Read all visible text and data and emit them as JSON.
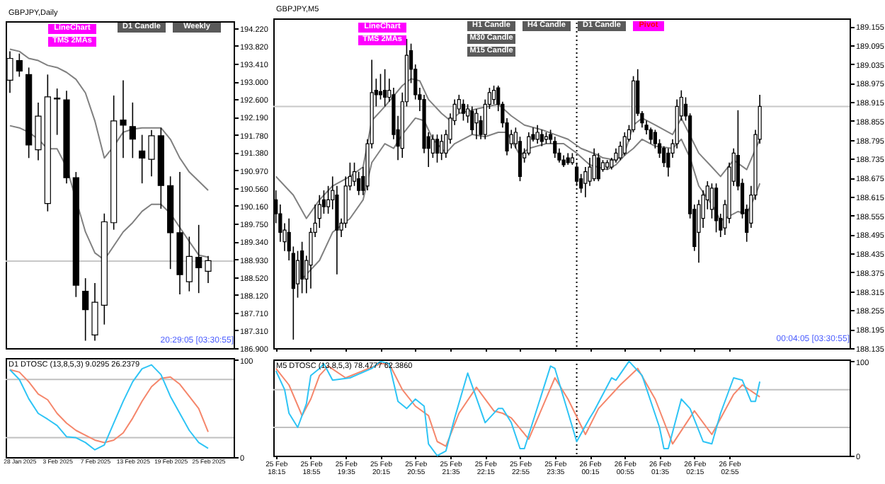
{
  "chart_data": [
    {
      "type": "candlestick",
      "title": "GBPJPY,Daily",
      "categories": [
        null,
        null,
        null,
        null,
        null,
        null,
        null,
        null,
        null,
        null,
        null,
        null,
        null,
        null,
        null,
        null,
        null,
        null,
        null,
        null,
        null,
        null
      ],
      "ohlc": [
        [
          193.03,
          193.69,
          192.74,
          193.53
        ],
        [
          193.48,
          193.64,
          193.11,
          193.24
        ],
        [
          193.16,
          193.32,
          191.25,
          191.55
        ],
        [
          191.44,
          192.52,
          191.2,
          192.21
        ],
        [
          190.21,
          193.16,
          190.03,
          192.65
        ],
        [
          192.62,
          192.84,
          191.78,
          192.6
        ],
        [
          192.58,
          192.79,
          190.67,
          190.8
        ],
        [
          190.8,
          190.93,
          188.07,
          188.34
        ],
        [
          188.2,
          188.5,
          187.07,
          187.78
        ],
        [
          187.2,
          188.39,
          187.07,
          187.95
        ],
        [
          187.88,
          189.98,
          187.44,
          189.79
        ],
        [
          189.77,
          192.68,
          189.61,
          192.1
        ],
        [
          192.12,
          193.03,
          191.25,
          192.0
        ],
        [
          191.97,
          192.52,
          191.25,
          191.68
        ],
        [
          191.41,
          191.78,
          190.67,
          191.25
        ],
        [
          191.22,
          191.89,
          190.83,
          191.76
        ],
        [
          191.76,
          191.94,
          190.09,
          190.62
        ],
        [
          190.62,
          190.83,
          188.71,
          189.54
        ],
        [
          189.54,
          190.93,
          188.13,
          188.58
        ],
        [
          188.42,
          189.45,
          188.2,
          189.0
        ],
        [
          188.98,
          189.72,
          188.16,
          188.74
        ],
        [
          188.66,
          189.01,
          188.39,
          188.9
        ]
      ],
      "series": [
        {
          "type": "line",
          "color": "#808080",
          "values": [
            193.74,
            193.69,
            193.53,
            193.48,
            193.37,
            193.32,
            193.21,
            193.05,
            192.74,
            192.1,
            191.25,
            191.52,
            191.84,
            191.91,
            191.94,
            191.94,
            191.94,
            191.68,
            191.25,
            190.93,
            190.72,
            190.51
          ]
        },
        {
          "type": "line",
          "color": "#808080",
          "values": [
            191.99,
            191.94,
            191.84,
            191.68,
            191.46,
            191.46,
            191.04,
            190.3,
            189.56,
            189.08,
            188.92,
            189.24,
            189.56,
            189.77,
            190.03,
            190.19,
            190.19,
            189.98,
            189.66,
            189.34,
            189.03,
            188.98
          ]
        }
      ],
      "ylim": [
        186.9,
        194.38
      ],
      "yticks": [
        {
          "value": 186.9,
          "label": "186.900"
        },
        {
          "value": 187.31,
          "label": "187.310"
        },
        {
          "value": 187.71,
          "label": "187.710"
        },
        {
          "value": 188.12,
          "label": "188.120"
        },
        {
          "value": 188.52,
          "label": "188.520"
        },
        {
          "value": 188.93,
          "label": "188.930"
        },
        {
          "value": 189.34,
          "label": "189.340"
        },
        {
          "value": 189.75,
          "label": "189.750"
        },
        {
          "value": 190.16,
          "label": "190.160"
        },
        {
          "value": 190.56,
          "label": "190.560"
        },
        {
          "value": 190.97,
          "label": "190.970"
        },
        {
          "value": 191.38,
          "label": "191.380"
        },
        {
          "value": 191.78,
          "label": "191.780"
        },
        {
          "value": 192.19,
          "label": "192.190"
        },
        {
          "value": 192.6,
          "label": "192.600"
        },
        {
          "value": 193.0,
          "label": "193.000"
        },
        {
          "value": 193.41,
          "label": "193.410"
        },
        {
          "value": 193.82,
          "label": "193.820"
        },
        {
          "value": 194.22,
          "label": "194.220"
        }
      ],
      "tick_labels": "y",
      "ref_lines": [
        {
          "axis": "y",
          "value": 188.89,
          "color": "#c8c8c8"
        }
      ],
      "annotations": [
        "LineChart",
        "TMS 2MAs",
        "D1 Candle",
        "Weekly",
        "20:29:05 [03:30:55]"
      ]
    },
    {
      "type": "line",
      "title": "D1 DTOSC (13,8,5,3) 9.0295 26.2379",
      "categories": [
        null,
        "28 Jan 2025",
        null,
        null,
        null,
        "3 Feb 2025",
        null,
        null,
        null,
        "7 Feb 2025",
        null,
        null,
        null,
        "13 Feb 2025",
        null,
        null,
        null,
        "19 Feb 2025",
        null,
        null,
        null,
        "25 Feb 2025"
      ],
      "series": [
        {
          "color": "#f5866b",
          "values": [
            90,
            87.5,
            77.5,
            65,
            59,
            45,
            35,
            27.5,
            22.5,
            17.5,
            15,
            17.5,
            25,
            40,
            57.5,
            72.5,
            81,
            82.5,
            75,
            62.5,
            50,
            26
          ]
        },
        {
          "color": "#2ec4f5",
          "values": [
            90,
            80,
            60,
            45,
            39,
            32.5,
            21,
            20,
            15,
            7.5,
            12.5,
            35,
            57.5,
            77.5,
            91,
            95,
            85,
            62.5,
            45,
            27.5,
            15,
            9
          ]
        }
      ],
      "ylim": [
        0,
        102
      ],
      "yticks": [
        0,
        100
      ],
      "ref_lines": [
        {
          "axis": "y",
          "value": 80,
          "color": "#c0c0c0"
        },
        {
          "axis": "y",
          "value": 20,
          "color": "#c0c0c0"
        }
      ]
    },
    {
      "type": "candlestick",
      "title": "GBPJPY,M5",
      "x": [
        "2025-02-25T18:15",
        "2025-02-25T18:20",
        "2025-02-25T18:25",
        "2025-02-25T18:30",
        "2025-02-25T18:35",
        "2025-02-25T18:40",
        "2025-02-25T18:45",
        "2025-02-25T18:50",
        "2025-02-25T18:55",
        "2025-02-25T19:00",
        "2025-02-25T19:05",
        "2025-02-25T19:10",
        "2025-02-25T19:15",
        "2025-02-25T19:20",
        "2025-02-25T19:25",
        "2025-02-25T19:30",
        "2025-02-25T19:35",
        "2025-02-25T19:40",
        "2025-02-25T19:45",
        "2025-02-25T19:50",
        "2025-02-25T19:55",
        "2025-02-25T20:00",
        "2025-02-25T20:05",
        "2025-02-25T20:10",
        "2025-02-25T20:15",
        "2025-02-25T20:20",
        "2025-02-25T20:25",
        "2025-02-25T20:30",
        "2025-02-25T20:35",
        "2025-02-25T20:40",
        "2025-02-25T20:45",
        "2025-02-25T20:50",
        "2025-02-25T20:55",
        "2025-02-25T21:00",
        "2025-02-25T21:05",
        "2025-02-25T21:10",
        "2025-02-25T21:15",
        "2025-02-25T21:20",
        "2025-02-25T21:25",
        "2025-02-25T21:30",
        "2025-02-25T21:35",
        "2025-02-25T21:40",
        "2025-02-25T21:45",
        "2025-02-25T21:50",
        "2025-02-25T21:55",
        "2025-02-25T22:00",
        "2025-02-25T22:05",
        "2025-02-25T22:10",
        "2025-02-25T22:15",
        "2025-02-25T22:20",
        "2025-02-25T22:25",
        "2025-02-25T22:30",
        "2025-02-25T22:35",
        "2025-02-25T22:40",
        "2025-02-25T22:45",
        "2025-02-25T22:50",
        "2025-02-25T22:55",
        "2025-02-25T23:00",
        "2025-02-25T23:05",
        "2025-02-25T23:10",
        "2025-02-25T23:15",
        "2025-02-25T23:20",
        "2025-02-25T23:25",
        "2025-02-25T23:30",
        "2025-02-25T23:35",
        "2025-02-25T23:40",
        "2025-02-25T23:45",
        "2025-02-25T23:50",
        "2025-02-25T23:55",
        "2025-02-26T00:00",
        "2025-02-26T00:05",
        "2025-02-26T00:10",
        "2025-02-26T00:15",
        "2025-02-26T00:20",
        "2025-02-26T00:25",
        "2025-02-26T00:30",
        "2025-02-26T00:35",
        "2025-02-26T00:40",
        "2025-02-26T00:45",
        "2025-02-26T00:50",
        "2025-02-26T00:55",
        "2025-02-26T01:00",
        "2025-02-26T01:05",
        "2025-02-26T01:10",
        "2025-02-26T01:15",
        "2025-02-26T01:20",
        "2025-02-26T01:25",
        "2025-02-26T01:30",
        "2025-02-26T01:35",
        "2025-02-26T01:40",
        "2025-02-26T01:45",
        "2025-02-26T01:50",
        "2025-02-26T01:55",
        "2025-02-26T02:00",
        "2025-02-26T02:05",
        "2025-02-26T02:10",
        "2025-02-26T02:15",
        "2025-02-26T02:20",
        "2025-02-26T02:25",
        "2025-02-26T02:30",
        "2025-02-26T02:35",
        "2025-02-26T02:40",
        "2025-02-26T02:45",
        "2025-02-26T02:50",
        "2025-02-26T02:55",
        "2025-02-26T03:00",
        "2025-02-26T03:05",
        "2025-02-26T03:10",
        "2025-02-26T03:15",
        "2025-02-26T03:20",
        "2025-02-26T03:25",
        "2025-02-26T03:30"
      ],
      "ohlc": [
        [
          188.605,
          188.635,
          188.531,
          188.561
        ],
        [
          188.561,
          188.59,
          188.472,
          188.502
        ],
        [
          188.472,
          188.531,
          188.443,
          188.509
        ],
        [
          188.502,
          188.546,
          188.413,
          188.443
        ],
        [
          188.435,
          188.457,
          188.162,
          188.324
        ],
        [
          188.339,
          188.443,
          188.295,
          188.413
        ],
        [
          188.443,
          188.472,
          188.309,
          188.354
        ],
        [
          188.354,
          188.428,
          188.309,
          188.413
        ],
        [
          188.398,
          188.516,
          188.324,
          188.502
        ],
        [
          188.502,
          188.59,
          188.487,
          188.531
        ],
        [
          188.546,
          188.62,
          188.516,
          188.59
        ],
        [
          188.605,
          188.635,
          188.561,
          188.583
        ],
        [
          188.583,
          188.649,
          188.561,
          188.605
        ],
        [
          188.605,
          188.679,
          188.575,
          188.635
        ],
        [
          188.62,
          188.649,
          188.369,
          188.509
        ],
        [
          188.509,
          188.546,
          188.487,
          188.531
        ],
        [
          188.531,
          188.679,
          188.516,
          188.649
        ],
        [
          188.649,
          188.723,
          188.635,
          188.679
        ],
        [
          188.664,
          188.723,
          188.649,
          188.694
        ],
        [
          188.672,
          188.694,
          188.62,
          188.635
        ],
        [
          188.679,
          188.709,
          188.62,
          188.635
        ],
        [
          188.649,
          188.797,
          188.635,
          188.783
        ],
        [
          188.783,
          189.049,
          188.768,
          188.945
        ],
        [
          188.952,
          188.989,
          188.901,
          188.938
        ],
        [
          188.948,
          189.004,
          188.923,
          188.938
        ],
        [
          188.952,
          189.019,
          188.901,
          188.93
        ],
        [
          188.93,
          188.989,
          188.916,
          188.952
        ],
        [
          188.938,
          188.96,
          188.797,
          188.812
        ],
        [
          188.827,
          188.871,
          188.731,
          188.775
        ],
        [
          188.768,
          188.945,
          188.738,
          188.916
        ],
        [
          188.916,
          189.115,
          188.901,
          189.063
        ],
        [
          189.078,
          189.1,
          188.975,
          189.019
        ],
        [
          189.019,
          189.034,
          188.923,
          188.938
        ],
        [
          188.938,
          188.96,
          188.886,
          188.923
        ],
        [
          188.923,
          188.938,
          188.753,
          188.768
        ],
        [
          188.805,
          188.819,
          188.709,
          188.768
        ],
        [
          188.753,
          188.812,
          188.738,
          188.797
        ],
        [
          188.797,
          188.812,
          188.723,
          188.753
        ],
        [
          188.753,
          188.812,
          188.731,
          188.79
        ],
        [
          188.753,
          188.827,
          188.738,
          188.812
        ],
        [
          188.797,
          188.879,
          188.783,
          188.864
        ],
        [
          188.856,
          188.923,
          188.842,
          188.908
        ],
        [
          188.893,
          188.938,
          188.879,
          188.923
        ],
        [
          188.908,
          188.923,
          188.856,
          188.879
        ],
        [
          188.871,
          188.908,
          188.849,
          188.893
        ],
        [
          188.886,
          188.901,
          188.812,
          188.827
        ],
        [
          188.849,
          188.893,
          188.797,
          188.879
        ],
        [
          188.856,
          188.871,
          188.797,
          188.812
        ],
        [
          188.812,
          188.923,
          188.797,
          188.908
        ],
        [
          188.908,
          188.96,
          188.893,
          188.945
        ],
        [
          188.923,
          188.967,
          188.908,
          188.952
        ],
        [
          188.96,
          188.967,
          188.886,
          188.908
        ],
        [
          188.908,
          188.916,
          188.834,
          188.849
        ],
        [
          188.849,
          188.864,
          188.746,
          188.76
        ],
        [
          188.783,
          188.827,
          188.768,
          188.812
        ],
        [
          188.783,
          188.834,
          188.768,
          188.819
        ],
        [
          188.79,
          188.805,
          188.664,
          188.679
        ],
        [
          188.738,
          188.768,
          188.723,
          188.753
        ],
        [
          188.753,
          188.819,
          188.746,
          188.805
        ],
        [
          188.812,
          188.834,
          188.79,
          188.797
        ],
        [
          188.797,
          188.842,
          188.783,
          188.819
        ],
        [
          188.812,
          188.827,
          188.775,
          188.79
        ],
        [
          188.797,
          188.819,
          188.783,
          188.805
        ],
        [
          188.812,
          188.827,
          188.783,
          188.797
        ],
        [
          188.79,
          188.805,
          188.738,
          188.753
        ],
        [
          188.753,
          188.768,
          188.723,
          188.731
        ],
        [
          188.731,
          188.746,
          188.709,
          188.716
        ],
        [
          188.738,
          188.753,
          188.716,
          188.723
        ],
        [
          188.723,
          188.753,
          188.716,
          188.738
        ],
        [
          188.709,
          188.723,
          188.649,
          188.664
        ],
        [
          188.672,
          188.687,
          188.627,
          188.642
        ],
        [
          188.657,
          188.709,
          188.613,
          188.694
        ],
        [
          188.664,
          188.738,
          188.649,
          188.709
        ],
        [
          188.672,
          188.768,
          188.664,
          188.746
        ],
        [
          188.738,
          188.753,
          188.664,
          188.672
        ],
        [
          188.701,
          188.731,
          188.694,
          188.723
        ],
        [
          188.709,
          188.731,
          188.701,
          188.723
        ],
        [
          188.709,
          188.738,
          188.701,
          188.731
        ],
        [
          188.731,
          188.768,
          188.723,
          188.753
        ],
        [
          188.738,
          188.79,
          188.731,
          188.775
        ],
        [
          188.753,
          188.819,
          188.746,
          188.805
        ],
        [
          188.797,
          188.842,
          188.79,
          188.827
        ],
        [
          188.827,
          188.997,
          188.819,
          188.982
        ],
        [
          188.982,
          189.019,
          188.871,
          188.879
        ],
        [
          188.879,
          188.886,
          188.834,
          188.849
        ],
        [
          188.842,
          188.856,
          188.812,
          188.827
        ],
        [
          188.827,
          188.834,
          188.783,
          188.797
        ],
        [
          188.819,
          188.827,
          188.768,
          188.783
        ],
        [
          188.783,
          188.797,
          188.738,
          188.753
        ],
        [
          188.768,
          188.775,
          188.709,
          188.723
        ],
        [
          188.753,
          188.768,
          188.679,
          188.709
        ],
        [
          188.753,
          188.797,
          188.738,
          188.783
        ],
        [
          188.783,
          188.923,
          188.768,
          188.901
        ],
        [
          188.871,
          188.952,
          188.856,
          188.93
        ],
        [
          188.908,
          188.93,
          188.856,
          188.871
        ],
        [
          188.871,
          188.879,
          188.546,
          188.561
        ],
        [
          188.575,
          188.59,
          188.443,
          188.457
        ],
        [
          188.502,
          188.605,
          188.406,
          188.59
        ],
        [
          188.546,
          188.635,
          188.516,
          188.62
        ],
        [
          188.605,
          188.664,
          188.575,
          188.649
        ],
        [
          188.575,
          188.657,
          188.546,
          188.642
        ],
        [
          188.642,
          188.657,
          188.502,
          188.539
        ],
        [
          188.546,
          188.561,
          188.487,
          188.509
        ],
        [
          188.516,
          188.605,
          188.494,
          188.59
        ],
        [
          188.546,
          188.723,
          188.531,
          188.709
        ],
        [
          188.664,
          188.768,
          188.649,
          188.753
        ],
        [
          188.746,
          188.889,
          188.635,
          188.649
        ],
        [
          188.657,
          188.672,
          188.546,
          188.561
        ],
        [
          188.575,
          188.59,
          188.472,
          188.502
        ],
        [
          188.531,
          188.649,
          188.516,
          188.62
        ],
        [
          188.62,
          188.827,
          188.605,
          188.812
        ],
        [
          188.797,
          188.938,
          188.783,
          188.901
        ]
      ],
      "series": [
        {
          "type": "line",
          "color": "#808080",
          "x": [
            "2025-02-25T18:15",
            "2025-02-25T18:35",
            "2025-02-25T18:50",
            "2025-02-25T19:05",
            "2025-02-25T19:20",
            "2025-02-25T19:40",
            "2025-02-25T19:55",
            "2025-02-25T20:05",
            "2025-02-25T20:20",
            "2025-02-25T20:40",
            "2025-02-25T20:50",
            "2025-02-25T21:00",
            "2025-02-25T21:10",
            "2025-02-25T21:25",
            "2025-02-25T21:35",
            "2025-02-25T21:45",
            "2025-02-25T22:05",
            "2025-02-25T22:30",
            "2025-02-25T22:45",
            "2025-02-25T23:00",
            "2025-02-25T23:20",
            "2025-02-25T23:35",
            "2025-02-25T23:50",
            "2025-02-26T00:05",
            "2025-02-26T00:25",
            "2025-02-26T00:30",
            "2025-02-26T00:45",
            "2025-02-26T00:55",
            "2025-02-26T01:05",
            "2025-02-26T01:15",
            "2025-02-26T01:30",
            "2025-02-26T01:50",
            "2025-02-26T02:00",
            "2025-02-26T02:20",
            "2025-02-26T02:35",
            "2025-02-26T02:45",
            "2025-02-26T03:00",
            "2025-02-26T03:15",
            "2025-02-26T03:30"
          ],
          "values": [
            188.679,
            188.62,
            188.546,
            188.605,
            188.649,
            188.679,
            188.709,
            188.856,
            188.901,
            188.967,
            188.989,
            188.982,
            188.923,
            188.879,
            188.856,
            188.879,
            188.893,
            188.908,
            188.871,
            188.842,
            188.827,
            188.812,
            188.797,
            188.768,
            188.746,
            188.738,
            188.731,
            188.753,
            188.842,
            188.864,
            188.842,
            188.812,
            188.864,
            188.753,
            188.709,
            188.679,
            188.731,
            188.701,
            188.797
          ]
        },
        {
          "type": "line",
          "color": "#808080",
          "x": [
            "2025-02-25T18:45",
            "2025-02-25T19:05",
            "2025-02-25T19:20",
            "2025-02-25T19:40",
            "2025-02-25T19:55",
            "2025-02-25T20:05",
            "2025-02-25T20:20",
            "2025-02-25T20:30",
            "2025-02-25T20:40",
            "2025-02-25T20:55",
            "2025-02-25T21:05",
            "2025-02-25T21:15",
            "2025-02-25T21:30",
            "2025-02-25T21:40",
            "2025-02-25T22:00",
            "2025-02-25T22:15",
            "2025-02-25T22:30",
            "2025-02-25T22:40",
            "2025-02-25T22:55",
            "2025-02-25T23:05",
            "2025-02-25T23:25",
            "2025-02-25T23:45",
            "2025-02-26T00:00",
            "2025-02-26T00:15",
            "2025-02-26T00:35",
            "2025-02-26T00:45",
            "2025-02-26T00:55",
            "2025-02-26T01:05",
            "2025-02-26T01:15",
            "2025-02-26T01:30",
            "2025-02-26T01:50",
            "2025-02-26T02:00",
            "2025-02-26T02:10",
            "2025-02-26T02:20",
            "2025-02-26T02:35",
            "2025-02-26T02:45",
            "2025-02-26T03:05",
            "2025-02-26T03:15",
            "2025-02-26T03:25",
            "2025-02-26T03:30"
          ],
          "values": [
            188.354,
            188.413,
            188.502,
            188.546,
            188.605,
            188.723,
            188.783,
            188.768,
            188.812,
            188.864,
            188.856,
            188.797,
            188.753,
            188.783,
            188.812,
            188.805,
            188.819,
            188.819,
            188.746,
            188.768,
            188.783,
            188.783,
            188.753,
            188.716,
            188.701,
            188.716,
            188.746,
            188.768,
            188.797,
            188.775,
            188.768,
            188.797,
            188.738,
            188.649,
            188.59,
            188.539,
            188.568,
            188.561,
            188.62,
            188.657
          ]
        }
      ],
      "xlim": [
        "2025-02-25T18:12",
        "2025-02-26T05:13"
      ],
      "xticks": [
        {
          "value": "2025-02-25T18:15",
          "label": null
        },
        {
          "value": "2025-02-25T18:55",
          "label": null
        },
        {
          "value": "2025-02-25T19:35",
          "label": null
        },
        {
          "value": "2025-02-25T20:15",
          "label": null
        },
        {
          "value": "2025-02-25T20:55",
          "label": null
        },
        {
          "value": "2025-02-25T21:35",
          "label": null
        },
        {
          "value": "2025-02-25T22:15",
          "label": null
        },
        {
          "value": "2025-02-25T22:55",
          "label": null
        },
        {
          "value": "2025-02-25T23:35",
          "label": null
        },
        {
          "value": "2025-02-26T00:15",
          "label": null
        },
        {
          "value": "2025-02-26T00:55",
          "label": null
        },
        {
          "value": "2025-02-26T01:35",
          "label": null
        },
        {
          "value": "2025-02-26T02:15",
          "label": null
        },
        {
          "value": "2025-02-26T02:55",
          "label": null
        }
      ],
      "ylim": [
        188.135,
        189.18
      ],
      "yticks": [
        188.135,
        188.195,
        188.255,
        188.315,
        188.375,
        188.435,
        188.495,
        188.555,
        188.615,
        188.675,
        188.735,
        188.795,
        188.855,
        188.915,
        188.975,
        189.035,
        189.095,
        189.155
      ],
      "tick_labels": "y",
      "ref_lines": [
        {
          "axis": "y",
          "value": 188.901,
          "color": "#c8c8c8"
        },
        {
          "axis": "x",
          "value": "2025-02-26T00:00",
          "color": "#000000",
          "line_style": "dotted"
        }
      ],
      "annotations": [
        "LineChart",
        "TMS 2MAs",
        "H1 Candle",
        "H4 Candle",
        "D1 Candle",
        "Pivot",
        "M30 Candle",
        "M15 Candle",
        "00:04:05 [03:30:55]"
      ]
    },
    {
      "type": "line",
      "title": "M5 DTOSC (13,8,5,3) 78.4777 62.3860",
      "series": [
        {
          "color": "#f5866b",
          "x": [
            "2025-02-25T18:15",
            "2025-02-25T18:30",
            "2025-02-25T18:45",
            "2025-02-25T18:55",
            "2025-02-25T19:05",
            "2025-02-25T19:15",
            "2025-02-25T19:35",
            "2025-02-25T19:55",
            "2025-02-25T20:15",
            "2025-02-25T20:25",
            "2025-02-25T20:40",
            "2025-02-25T20:55",
            "2025-02-25T21:10",
            "2025-02-25T21:20",
            "2025-02-25T21:30",
            "2025-02-25T21:45",
            "2025-02-25T22:05",
            "2025-02-25T22:25",
            "2025-02-25T22:35",
            "2025-02-25T22:45",
            "2025-02-25T23:05",
            "2025-02-25T23:20",
            "2025-02-25T23:35",
            "2025-02-25T23:50",
            "2025-02-26T00:10",
            "2025-02-26T00:25",
            "2025-02-26T00:50",
            "2025-02-26T01:10",
            "2025-02-26T01:30",
            "2025-02-26T01:50",
            "2025-02-26T02:15",
            "2025-02-26T02:35",
            "2025-02-26T03:00",
            "2025-02-26T03:10",
            "2025-02-26T03:30"
          ],
          "values": [
            92.5,
            75,
            42.5,
            60,
            85,
            95,
            82.5,
            90,
            97.5,
            97.5,
            70,
            52.5,
            42.5,
            15,
            10,
            45,
            72.5,
            47.5,
            45,
            40,
            17.5,
            50,
            82.5,
            60,
            22.5,
            50,
            75,
            92.5,
            60,
            12.5,
            47.5,
            22.5,
            65,
            75,
            62.4
          ]
        },
        {
          "color": "#2ec4f5",
          "x": [
            "2025-02-25T18:15",
            "2025-02-25T18:25",
            "2025-02-25T18:30",
            "2025-02-25T18:40",
            "2025-02-25T18:50",
            "2025-02-25T18:55",
            "2025-02-25T19:05",
            "2025-02-25T19:10",
            "2025-02-25T19:20",
            "2025-02-25T19:40",
            "2025-02-25T20:05",
            "2025-02-25T20:15",
            "2025-02-25T20:25",
            "2025-02-25T20:35",
            "2025-02-25T20:45",
            "2025-02-25T20:55",
            "2025-02-25T21:05",
            "2025-02-25T21:10",
            "2025-02-25T21:20",
            "2025-02-25T21:30",
            "2025-02-25T21:40",
            "2025-02-25T21:55",
            "2025-02-25T22:15",
            "2025-02-25T22:30",
            "2025-02-25T22:35",
            "2025-02-25T22:45",
            "2025-02-25T22:55",
            "2025-02-25T23:00",
            "2025-02-25T23:30",
            "2025-02-25T23:35",
            "2025-02-26T00:00",
            "2025-02-26T00:15",
            "2025-02-26T00:20",
            "2025-02-26T00:40",
            "2025-02-26T00:45",
            "2025-02-26T01:00",
            "2025-02-26T01:15",
            "2025-02-26T01:35",
            "2025-02-26T01:40",
            "2025-02-26T01:45",
            "2025-02-26T02:00",
            "2025-02-26T02:10",
            "2025-02-26T02:25",
            "2025-02-26T02:35",
            "2025-02-26T02:45",
            "2025-02-26T03:00",
            "2025-02-26T03:10",
            "2025-02-26T03:20",
            "2025-02-26T03:25",
            "2025-02-26T03:30"
          ],
          "values": [
            90,
            70,
            45,
            30,
            55,
            85,
            92.5,
            97.5,
            80,
            82.5,
            92.5,
            100,
            97.5,
            57.5,
            50,
            60,
            52.5,
            12.5,
            0,
            5,
            40,
            87.5,
            35,
            50,
            50,
            35,
            7.5,
            7.5,
            95,
            92.5,
            15,
            40,
            47.5,
            82.5,
            80,
            100,
            85,
            30,
            7.5,
            7.5,
            60,
            50,
            15,
            12.5,
            45,
            82.5,
            80,
            57.5,
            57.5,
            78.5
          ]
        }
      ],
      "xlim": [
        "2025-02-25T18:12",
        "2025-02-26T05:13"
      ],
      "xticks": [
        {
          "value": "2025-02-25T18:15",
          "label": "25 Feb 18:15"
        },
        {
          "value": "2025-02-25T18:55",
          "label": "25 Feb 18:55"
        },
        {
          "value": "2025-02-25T19:35",
          "label": "25 Feb 19:35"
        },
        {
          "value": "2025-02-25T20:15",
          "label": "25 Feb 20:15"
        },
        {
          "value": "2025-02-25T20:55",
          "label": "25 Feb 20:55"
        },
        {
          "value": "2025-02-25T21:35",
          "label": "25 Feb 21:35"
        },
        {
          "value": "2025-02-25T22:15",
          "label": "25 Feb 22:15"
        },
        {
          "value": "2025-02-25T22:55",
          "label": "25 Feb 22:55"
        },
        {
          "value": "2025-02-25T23:35",
          "label": "25 Feb 23:35"
        },
        {
          "value": "2025-02-26T00:15",
          "label": "26 Feb 00:15"
        },
        {
          "value": "2025-02-26T00:55",
          "label": "26 Feb 00:55"
        },
        {
          "value": "2025-02-26T01:35",
          "label": "26 Feb 01:35"
        },
        {
          "value": "2025-02-26T02:15",
          "label": "26 Feb 02:15"
        },
        {
          "value": "2025-02-26T02:55",
          "label": "26 Feb 02:55"
        }
      ],
      "ylim": [
        0,
        102
      ],
      "yticks": [
        0,
        100
      ],
      "ref_lines": [
        {
          "axis": "y",
          "value": 70,
          "color": "#c0c0c0"
        },
        {
          "axis": "y",
          "value": 30,
          "color": "#c0c0c0"
        },
        {
          "axis": "x",
          "value": "2025-02-26T00:00",
          "color": "#000000",
          "line_style": "dotted"
        }
      ]
    }
  ]
}
